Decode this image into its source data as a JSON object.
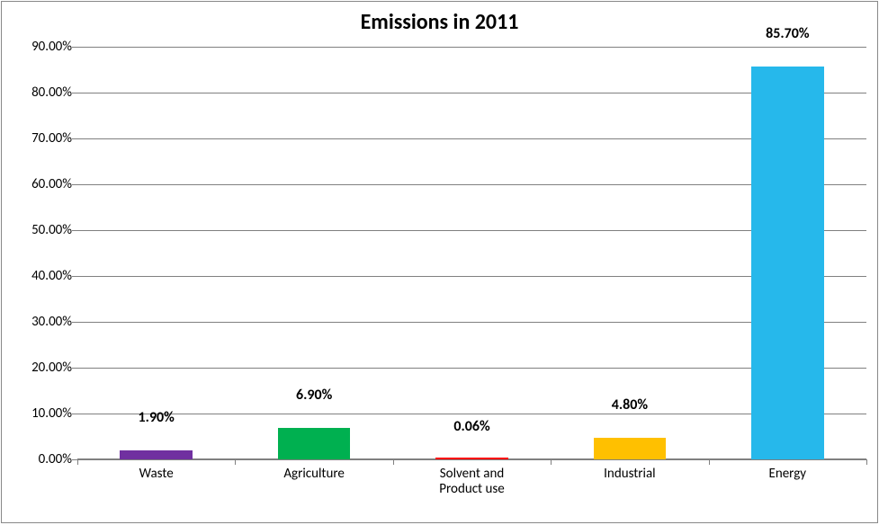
{
  "chart": {
    "type": "bar",
    "title": "Emissions in 2011",
    "title_fontsize": 24,
    "title_fontweight": "bold",
    "title_color": "#000000",
    "background_color": "#ffffff",
    "border_color": "#888888",
    "categories": [
      "Waste",
      "Agriculture",
      "Solvent and\nProduct use",
      "Industrial",
      "Energy"
    ],
    "values": [
      1.9,
      6.9,
      0.06,
      4.8,
      85.7
    ],
    "value_labels": [
      "1.90%",
      "6.90%",
      "0.06%",
      "4.80%",
      "85.70%"
    ],
    "value_label_fontsize": 16,
    "value_label_fontweight": "bold",
    "bar_fill_colors": [
      "#7030a0",
      "#00b050",
      "#ffffff",
      "#ffc000",
      "#26b8eb"
    ],
    "bar_border_colors": [
      "#7030a0",
      "#00b050",
      "#ff0000",
      "#ffc000",
      "#26b8eb"
    ],
    "bar_border_width": 1,
    "bar_width_ratio": 0.46,
    "y_axis": {
      "min": 0,
      "max": 90,
      "tick_step": 10,
      "tick_labels": [
        "0.00%",
        "10.00%",
        "20.00%",
        "30.00%",
        "40.00%",
        "50.00%",
        "60.00%",
        "70.00%",
        "80.00%",
        "90.00%"
      ],
      "tick_fontsize": 15,
      "tick_color": "#000000",
      "axis_line_color": "#808080",
      "tick_mark_color": "#808080"
    },
    "x_axis": {
      "label_fontsize": 15,
      "tick_mark_color": "#808080",
      "axis_line_color": "#808080"
    },
    "gridline_color": "#808080",
    "gridline_width": 1
  }
}
